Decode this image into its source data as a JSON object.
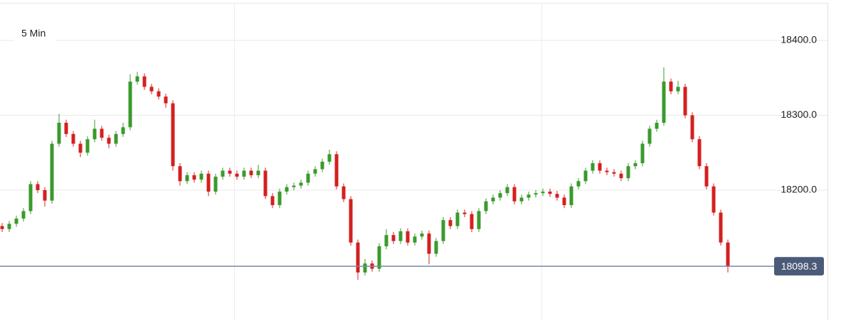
{
  "chart_data": {
    "type": "candlestick",
    "title": "5 Min",
    "up_color": "#3a9a2c",
    "down_color": "#d42020",
    "ylim": [
      18026.5,
      18454
    ],
    "yticks": [
      {
        "value": 18200,
        "label": "18200.0"
      },
      {
        "value": 18300,
        "label": "18300.0"
      },
      {
        "value": 18400,
        "label": "18400.0"
      }
    ],
    "grid": true,
    "series": [
      {
        "name": "open",
        "values": [
          18152,
          18148,
          18155,
          18162,
          18172,
          18208,
          18200,
          18186,
          18262,
          18290,
          18275,
          18262,
          18250,
          18268,
          18282,
          18270,
          18262,
          18275,
          18284,
          18345,
          18352,
          18338,
          18332,
          18325,
          18316,
          18232,
          18212,
          18220,
          18214,
          18222,
          18198,
          18218,
          18226,
          18222,
          18218,
          18226,
          18220,
          18226,
          18192,
          18180,
          18198,
          18204,
          18206,
          18210,
          18222,
          18228,
          18238,
          18248,
          18205,
          18188,
          18130,
          18090,
          18102,
          18095,
          18125,
          18140,
          18132,
          18145,
          18130,
          18138,
          18142,
          18115,
          18132,
          18160,
          18152,
          18170,
          18168,
          18148,
          18172,
          18185,
          18190,
          18196,
          18204,
          18185,
          18190,
          18194,
          18196,
          18198,
          18195,
          18190,
          18180,
          18205,
          18212,
          18226,
          18236,
          18226,
          18224,
          18222,
          18216,
          18232,
          18236,
          18262,
          18282,
          18290,
          18345,
          18332,
          18338,
          18300,
          18268,
          18232,
          18205,
          18170,
          18130
        ]
      },
      {
        "name": "high",
        "values": [
          18156,
          18159,
          18166,
          18176,
          18212,
          18212,
          18204,
          18266,
          18302,
          18294,
          18279,
          18266,
          18272,
          18294,
          18286,
          18274,
          18279,
          18290,
          18355,
          18358,
          18356,
          18342,
          18336,
          18329,
          18320,
          18236,
          18224,
          18224,
          18226,
          18226,
          18222,
          18230,
          18230,
          18226,
          18230,
          18230,
          18234,
          18230,
          18196,
          18202,
          18208,
          18210,
          18214,
          18226,
          18232,
          18242,
          18254,
          18252,
          18209,
          18192,
          18134,
          18108,
          18106,
          18129,
          18148,
          18144,
          18149,
          18149,
          18142,
          18146,
          18146,
          18136,
          18164,
          18164,
          18174,
          18174,
          18172,
          18176,
          18189,
          18194,
          18200,
          18208,
          18208,
          18194,
          18198,
          18200,
          18202,
          18202,
          18199,
          18194,
          18209,
          18216,
          18230,
          18240,
          18240,
          18230,
          18228,
          18226,
          18236,
          18240,
          18266,
          18286,
          18294,
          18364,
          18349,
          18346,
          18342,
          18304,
          18272,
          18236,
          18209,
          18174,
          18134
        ]
      },
      {
        "name": "low",
        "values": [
          18144,
          18144,
          18151,
          18158,
          18168,
          18196,
          18178,
          18182,
          18258,
          18271,
          18258,
          18244,
          18246,
          18264,
          18266,
          18256,
          18258,
          18271,
          18280,
          18341,
          18334,
          18328,
          18321,
          18310,
          18226,
          18206,
          18208,
          18210,
          18210,
          18192,
          18194,
          18214,
          18218,
          18214,
          18214,
          18216,
          18216,
          18188,
          18176,
          18176,
          18194,
          18200,
          18202,
          18206,
          18218,
          18224,
          18234,
          18201,
          18184,
          18126,
          18080,
          18086,
          18091,
          18091,
          18121,
          18128,
          18128,
          18126,
          18126,
          18134,
          18101,
          18111,
          18128,
          18148,
          18148,
          18164,
          18144,
          18144,
          18168,
          18181,
          18186,
          18192,
          18181,
          18181,
          18186,
          18190,
          18192,
          18191,
          18186,
          18176,
          18176,
          18201,
          18208,
          18222,
          18222,
          18220,
          18218,
          18212,
          18212,
          18228,
          18232,
          18258,
          18278,
          18286,
          18328,
          18328,
          18296,
          18264,
          18228,
          18201,
          18166,
          18126,
          18090
        ]
      },
      {
        "name": "close",
        "values": [
          18148,
          18155,
          18162,
          18172,
          18208,
          18200,
          18186,
          18262,
          18290,
          18275,
          18262,
          18250,
          18268,
          18282,
          18270,
          18262,
          18275,
          18284,
          18345,
          18352,
          18338,
          18332,
          18325,
          18316,
          18232,
          18212,
          18220,
          18214,
          18222,
          18198,
          18218,
          18226,
          18222,
          18218,
          18226,
          18220,
          18226,
          18192,
          18180,
          18198,
          18204,
          18206,
          18210,
          18222,
          18228,
          18238,
          18248,
          18205,
          18188,
          18130,
          18090,
          18102,
          18095,
          18125,
          18140,
          18132,
          18145,
          18130,
          18138,
          18142,
          18115,
          18132,
          18160,
          18152,
          18170,
          18168,
          18148,
          18172,
          18185,
          18190,
          18196,
          18204,
          18185,
          18190,
          18194,
          18196,
          18198,
          18195,
          18190,
          18180,
          18205,
          18212,
          18226,
          18236,
          18226,
          18224,
          18222,
          18216,
          18232,
          18236,
          18262,
          18282,
          18290,
          18345,
          18332,
          18338,
          18300,
          18268,
          18232,
          18205,
          18170,
          18130,
          18098.3
        ]
      }
    ]
  }
}
